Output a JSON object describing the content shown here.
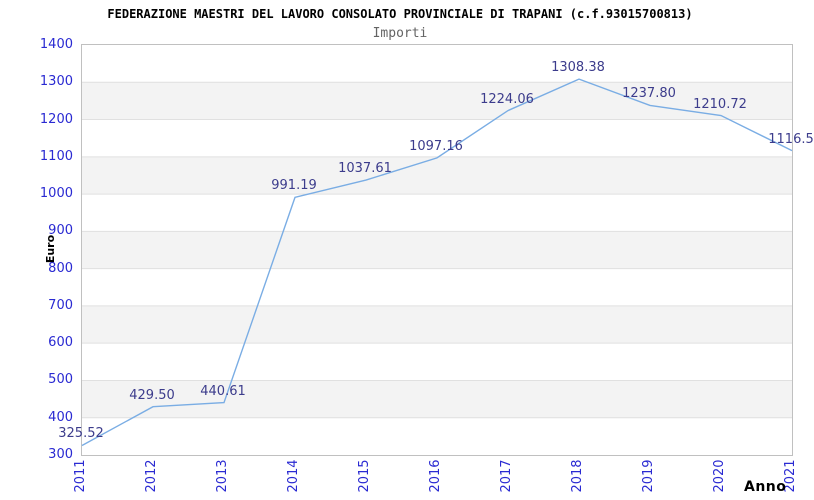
{
  "title": "FEDERAZIONE MAESTRI DEL LAVORO CONSOLATO PROVINCIALE DI TRAPANI (c.f.93015700813)",
  "subtitle": "Importi",
  "chart_data": {
    "type": "line",
    "categories": [
      "2011",
      "2012",
      "2013",
      "2014",
      "2015",
      "2016",
      "2017",
      "2018",
      "2019",
      "2020",
      "2021"
    ],
    "values": [
      325.52,
      429.5,
      440.61,
      991.19,
      1037.61,
      1097.16,
      1224.06,
      1308.38,
      1237.8,
      1210.72,
      1116.5
    ],
    "point_labels": [
      "325.52",
      "429.50",
      "440.61",
      "991.19",
      "1037.61",
      "1097.16",
      "1224.06",
      "1308.38",
      "1237.80",
      "1210.72",
      "1116.5"
    ],
    "title": "Importi",
    "xlabel": "Anno",
    "ylabel": "Euro",
    "ylim": [
      300,
      1400
    ],
    "yticks": [
      300,
      400,
      500,
      600,
      700,
      800,
      900,
      1000,
      1100,
      1200,
      1300,
      1400
    ],
    "grid": "horizontal-lines-with-alternating-bands",
    "legend": "none",
    "colors": {
      "line": "#7aade4",
      "tick_label": "#2a2ad2",
      "point_label": "#3c3c8c",
      "band_fill": "#f3f3f3",
      "gridline": "#e0e0e0",
      "plot_border": "#c0c0c0",
      "title": "#000000",
      "subtitle": "#646464"
    }
  }
}
